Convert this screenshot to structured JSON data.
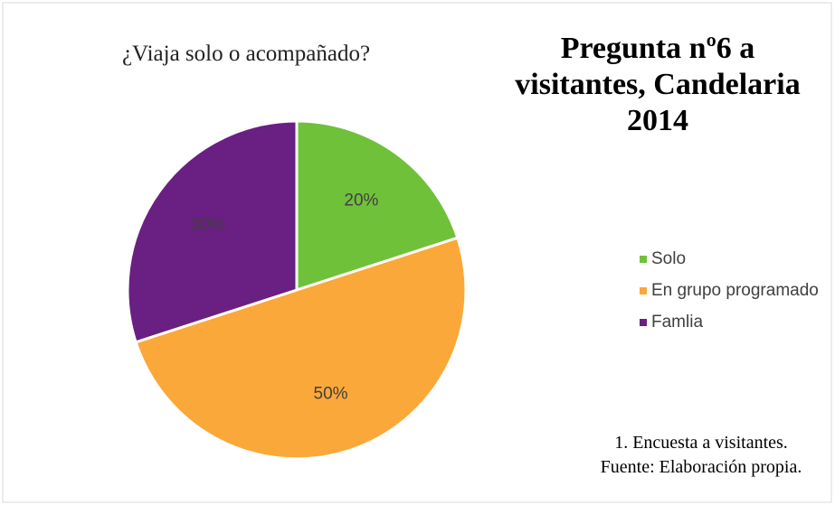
{
  "chart_data": {
    "type": "pie",
    "title": "¿Viaja solo o acompañado?",
    "heading": [
      "Pregunta nº6 a",
      "visitantes, Candelaria",
      "2014"
    ],
    "source": [
      "1. Encuesta a visitantes.",
      "Fuente: Elaboración propia."
    ],
    "categories": [
      "Solo",
      "En grupo programado",
      "Famlia"
    ],
    "values": [
      20,
      50,
      30
    ],
    "value_labels": [
      "20%",
      "50%",
      "30%"
    ],
    "colors": [
      "#70c13a",
      "#fba83a",
      "#6a1f82"
    ],
    "legend": "right"
  }
}
